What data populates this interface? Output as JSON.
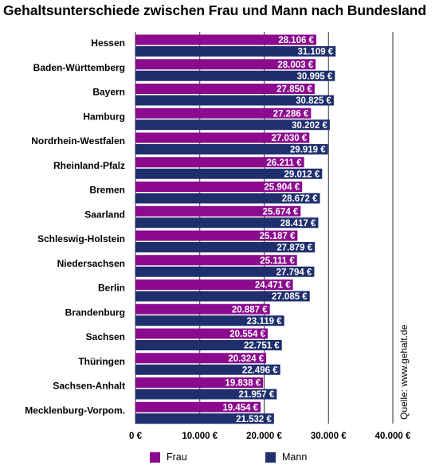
{
  "chart_data": {
    "type": "bar",
    "orientation": "horizontal",
    "title": "Gehaltsunterschiede zwischen Frau und Mann nach Bundesland",
    "categories": [
      "Hessen",
      "Baden-Württemberg",
      "Bayern",
      "Hamburg",
      "Nordrhein-Westfalen",
      "Rheinland-Pfalz",
      "Bremen",
      "Saarland",
      "Schleswig-Holstein",
      "Niedersachsen",
      "Berlin",
      "Brandenburg",
      "Sachsen",
      "Thüringen",
      "Sachsen-Anhalt",
      "Mecklenburg-Vorpom."
    ],
    "series": [
      {
        "name": "Frau",
        "color": "#8b0a8e",
        "values": [
          28106,
          28003,
          27850,
          27286,
          27030,
          26211,
          25904,
          25674,
          25187,
          25111,
          24471,
          20887,
          20554,
          20324,
          19838,
          19454
        ],
        "labels": [
          "28.106 €",
          "28.003 €",
          "27.850 €",
          "27.286 €",
          "27.030 €",
          "26.211 €",
          "25.904 €",
          "25.674 €",
          "25.187 €",
          "25.111 €",
          "24.471 €",
          "20.887 €",
          "20.554 €",
          "20.324 €",
          "19.838 €",
          "19.454 €"
        ]
      },
      {
        "name": "Mann",
        "color": "#1f2f6e",
        "values": [
          31109,
          30995,
          30825,
          30202,
          29919,
          29012,
          28672,
          28417,
          27879,
          27794,
          27085,
          23119,
          22751,
          22496,
          21957,
          21532
        ],
        "labels": [
          "31.109 €",
          "30.995 €",
          "30.825 €",
          "30.202 €",
          "29.919 €",
          "29.012 €",
          "28.672 €",
          "28.417 €",
          "27.879 €",
          "27.794 €",
          "27.085 €",
          "23.119 €",
          "22.751 €",
          "22.496 €",
          "21.957 €",
          "21.532 €"
        ]
      }
    ],
    "xlim": [
      0,
      40000
    ],
    "xticks": [
      0,
      10000,
      20000,
      30000,
      40000
    ],
    "xtick_labels": [
      "0 €",
      "10.000 €",
      "20.000 €",
      "30.000 €",
      "40.000 €"
    ],
    "grid": true,
    "legend_position": "bottom",
    "source": "Quelle: www.gehalt.de"
  }
}
